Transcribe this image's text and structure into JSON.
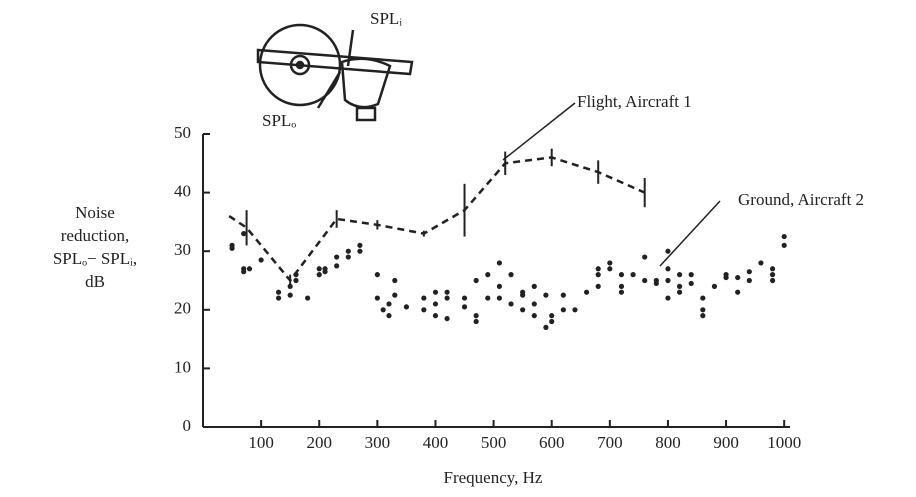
{
  "chart_data": {
    "type": "line-scatter",
    "x_label": "Frequency, Hz",
    "y_label": [
      "Noise",
      "reduction,",
      "SPLₒ− SPLᵢ,",
      "dB"
    ],
    "diagram_labels": [
      "SPLᵢ",
      "SPLₒ"
    ],
    "xlim": [
      0,
      1010
    ],
    "ylim": [
      0,
      50
    ],
    "xticks": [
      100,
      200,
      300,
      400,
      500,
      600,
      700,
      800,
      900,
      1000
    ],
    "yticks": [
      0,
      10,
      20,
      30,
      40,
      50
    ],
    "series": [
      {
        "name": "Flight, Aircraft 1",
        "color": "#222222",
        "x": [
          45,
          75,
          150,
          230,
          300,
          380,
          450,
          520,
          600,
          680,
          760
        ],
        "values": [
          36,
          34,
          25,
          35.5,
          34.5,
          33,
          37,
          45,
          46,
          43.5,
          40
        ],
        "errors": [
          0,
          3,
          1,
          1.5,
          0.8,
          0.5,
          4.5,
          2,
          1.5,
          2,
          2.5
        ]
      },
      {
        "name": "Ground, Aircraft 2",
        "color": "#222222",
        "x": [
          50,
          50,
          70,
          70,
          70,
          80,
          100,
          130,
          130,
          150,
          150,
          160,
          160,
          180,
          200,
          200,
          210,
          210,
          230,
          230,
          250,
          250,
          270,
          270,
          300,
          300,
          310,
          320,
          320,
          330,
          330,
          350,
          380,
          380,
          400,
          400,
          400,
          420,
          420,
          420,
          450,
          450,
          470,
          470,
          470,
          490,
          490,
          510,
          510,
          510,
          530,
          530,
          550,
          550,
          550,
          570,
          570,
          570,
          590,
          590,
          600,
          600,
          620,
          620,
          640,
          660,
          680,
          680,
          680,
          700,
          700,
          720,
          720,
          720,
          740,
          760,
          760,
          780,
          780,
          800,
          800,
          800,
          800,
          820,
          820,
          820,
          840,
          840,
          860,
          860,
          860,
          880,
          900,
          900,
          920,
          920,
          940,
          940,
          960,
          980,
          980,
          980,
          1000,
          1000
        ],
        "values": [
          31,
          30.5,
          27,
          26.5,
          33,
          27,
          28.5,
          23,
          22,
          24,
          22.5,
          25,
          26,
          22,
          27,
          26,
          27,
          26.5,
          29,
          27.5,
          29,
          30,
          31,
          30,
          26,
          22,
          20,
          19,
          21,
          25,
          22.5,
          20.5,
          22,
          20,
          23,
          21,
          19,
          23,
          18.5,
          22,
          22,
          20.5,
          25,
          19,
          18,
          26,
          22,
          28,
          24,
          22,
          26,
          21,
          23,
          22.5,
          20,
          21,
          19,
          24,
          22.5,
          17,
          19,
          18,
          22.5,
          20,
          20,
          23,
          26,
          27,
          24,
          28,
          27,
          26,
          24,
          23,
          26,
          29,
          25,
          25,
          24.5,
          25,
          27,
          30,
          22,
          26,
          24,
          23,
          24.5,
          26,
          22,
          20,
          19,
          24,
          25.5,
          26,
          25.5,
          23,
          25,
          26.5,
          28,
          27,
          25,
          26,
          31,
          32.5
        ]
      }
    ]
  }
}
